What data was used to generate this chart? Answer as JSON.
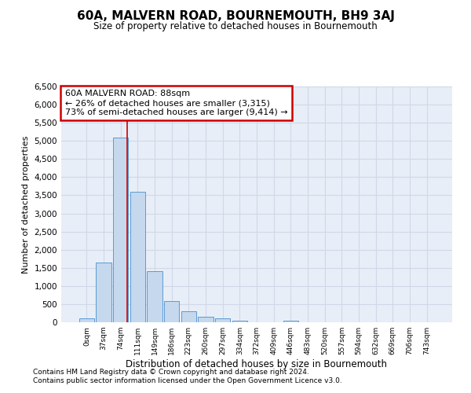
{
  "title": "60A, MALVERN ROAD, BOURNEMOUTH, BH9 3AJ",
  "subtitle": "Size of property relative to detached houses in Bournemouth",
  "xlabel": "Distribution of detached houses by size in Bournemouth",
  "ylabel": "Number of detached properties",
  "bar_labels": [
    "0sqm",
    "37sqm",
    "74sqm",
    "111sqm",
    "149sqm",
    "186sqm",
    "223sqm",
    "260sqm",
    "297sqm",
    "334sqm",
    "372sqm",
    "409sqm",
    "446sqm",
    "483sqm",
    "520sqm",
    "557sqm",
    "594sqm",
    "632sqm",
    "669sqm",
    "706sqm",
    "743sqm"
  ],
  "bar_values": [
    100,
    1650,
    5100,
    3600,
    1400,
    580,
    300,
    150,
    100,
    50,
    0,
    0,
    50,
    0,
    0,
    0,
    0,
    0,
    0,
    0,
    0
  ],
  "bar_color": "#c5d8ed",
  "bar_edgecolor": "#5b9bd5",
  "ylim": [
    0,
    6500
  ],
  "yticks": [
    0,
    500,
    1000,
    1500,
    2000,
    2500,
    3000,
    3500,
    4000,
    4500,
    5000,
    5500,
    6000,
    6500
  ],
  "annotation_text": "60A MALVERN ROAD: 88sqm\n← 26% of detached houses are smaller (3,315)\n73% of semi-detached houses are larger (9,414) →",
  "annotation_box_color": "#ffffff",
  "annotation_border_color": "#cc0000",
  "grid_color": "#d0d8e8",
  "background_color": "#e8eef7",
  "footer_line1": "Contains HM Land Registry data © Crown copyright and database right 2024.",
  "footer_line2": "Contains public sector information licensed under the Open Government Licence v3.0."
}
